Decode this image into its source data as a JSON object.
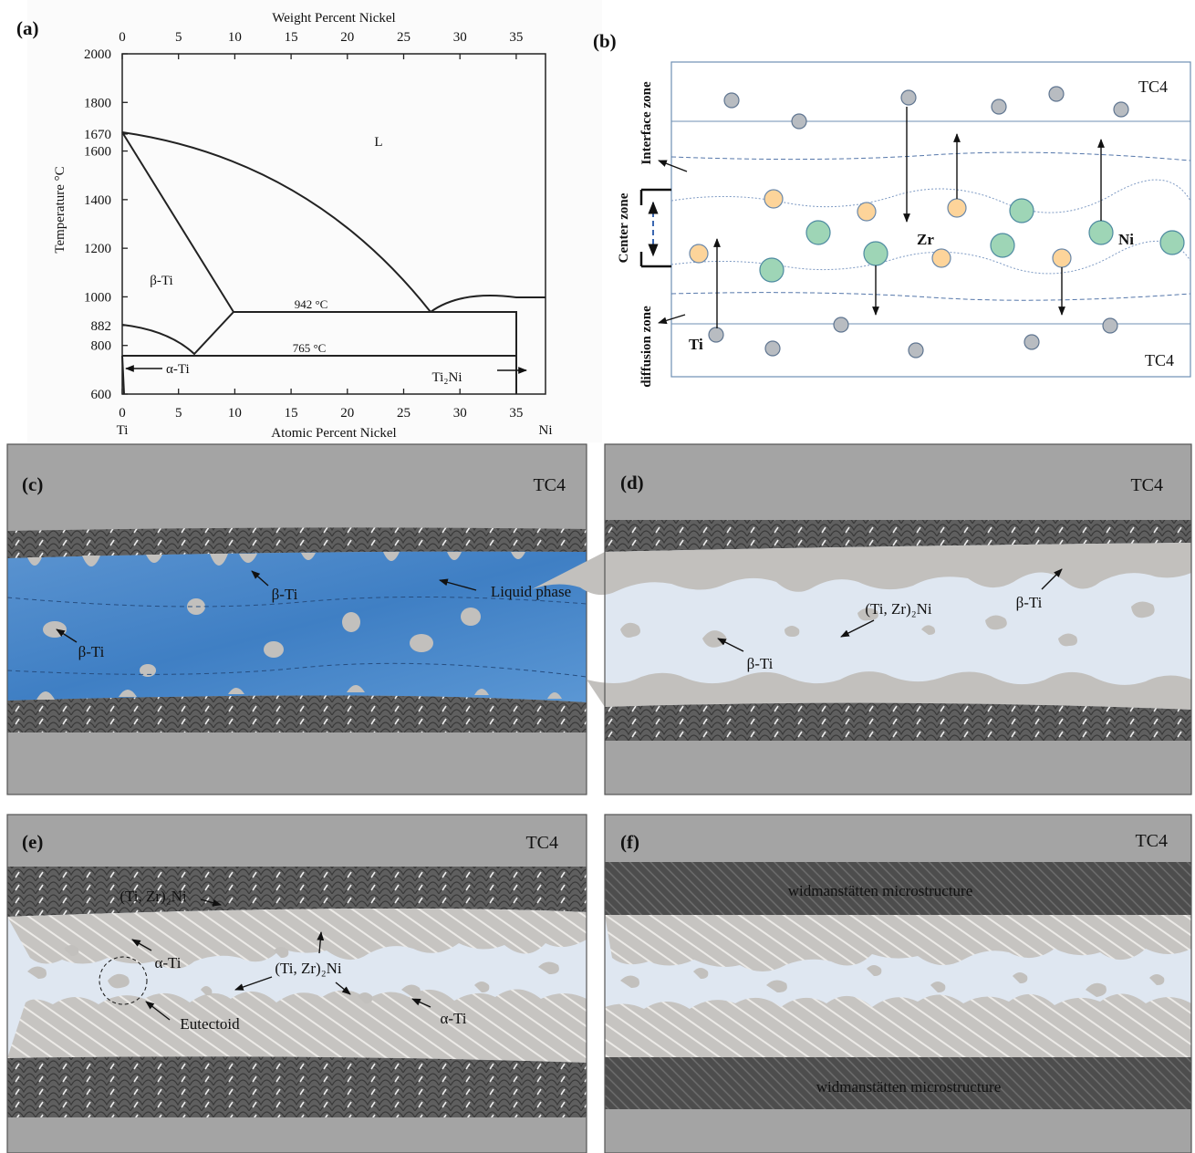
{
  "panel_a": {
    "label": "(a)",
    "top_axis_title": "Weight Percent Nickel",
    "top_ticks": [
      0,
      5,
      10,
      15,
      20,
      25,
      30,
      35
    ],
    "bottom_axis_title": "Atomic Percent Nickel",
    "bottom_ticks": [
      0,
      5,
      10,
      15,
      20,
      25,
      30,
      35
    ],
    "y_axis_title": "Temperature °C",
    "y_ticks": [
      600,
      800,
      882,
      1000,
      1200,
      1400,
      1600,
      1670,
      1800,
      2000
    ],
    "left_element": "Ti",
    "right_element": "Ni",
    "region_labels": {
      "liquid": "L",
      "beta": "β-Ti",
      "alpha": "α-Ti",
      "ti2ni": "Ti₂Ni"
    },
    "isotherms": {
      "upper": "942 °C",
      "lower": "765 °C"
    }
  },
  "panel_b": {
    "label": "(b)",
    "top_base": "TC4",
    "bottom_base": "TC4",
    "zones": {
      "interface": "Interface zone",
      "center": "Center zone",
      "diffusion": "diffusion zone"
    },
    "elements": {
      "zr": "Zr",
      "ni": "Ni",
      "ti": "Ti"
    }
  },
  "panel_c": {
    "label": "(c)",
    "base": "TC4",
    "beta_top": "β-Ti",
    "liquid": "Liquid phase",
    "beta_left": "β-Ti"
  },
  "panel_d": {
    "label": "(d)",
    "base": "TC4",
    "compound": "(Ti, Zr)₂Ni",
    "beta_right": "β-Ti",
    "beta_left": "β-Ti"
  },
  "panel_e": {
    "label": "(e)",
    "base": "TC4",
    "compound_top": "(Ti, Zr)₂Ni",
    "alpha_left": "α-Ti",
    "compound_mid": "(Ti, Zr)₂Ni",
    "eutectoid": "Eutectoid",
    "alpha_right": "α-Ti"
  },
  "panel_f": {
    "label": "(f)",
    "base": "TC4",
    "upper_layer": "widmanstätten microstructure",
    "lower_layer": "widmanstätten microstructure"
  }
}
